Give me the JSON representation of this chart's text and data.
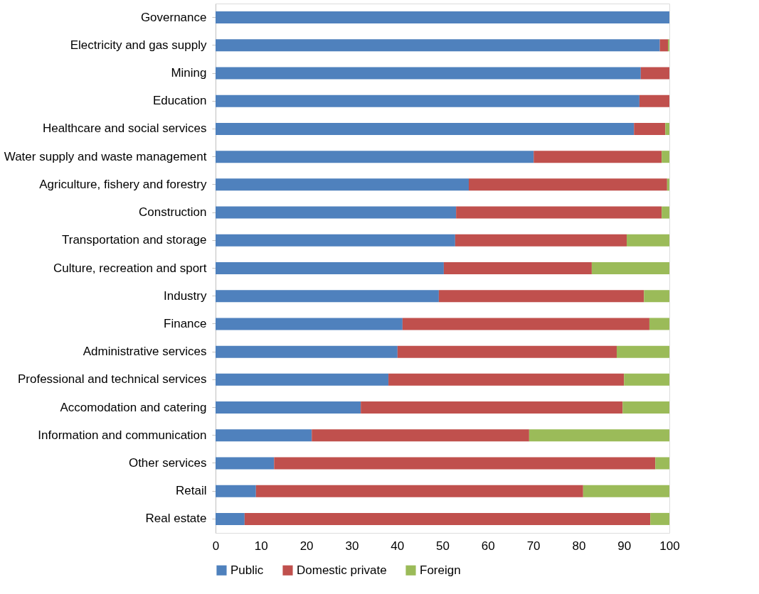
{
  "chart_data": {
    "type": "bar",
    "orientation": "horizontal",
    "stacked": true,
    "legend": "bottom",
    "grid": false,
    "categories": [
      "Governance",
      "Electricity and gas supply",
      "Mining",
      "Education",
      "Healthcare and social services",
      "Water supply and waste management",
      "Agriculture, fishery and forestry",
      "Construction",
      "Transportation and storage",
      "Culture, recreation and sport",
      "Industry",
      "Finance",
      "Administrative services",
      "Professional and technical services",
      "Accomodation and catering",
      "Information and communication",
      "Other services",
      "Retail",
      "Real estate"
    ],
    "series": [
      {
        "name": "Public",
        "color": "#4f81bd",
        "values": [
          100,
          97.9,
          93.7,
          93.4,
          92.2,
          70.1,
          55.8,
          53.0,
          52.8,
          50.3,
          49.2,
          41.2,
          40.1,
          38.1,
          32.0,
          21.2,
          12.9,
          8.9,
          6.4
        ]
      },
      {
        "name": "Domestic private",
        "color": "#c0504d",
        "values": [
          0,
          1.8,
          6.3,
          6.6,
          6.9,
          28.2,
          43.7,
          45.3,
          37.8,
          32.6,
          45.2,
          54.4,
          48.3,
          51.9,
          57.7,
          47.9,
          84.0,
          72.1,
          89.4
        ]
      },
      {
        "name": "Foreign",
        "color": "#9bbb59",
        "values": [
          0,
          0.3,
          0,
          0,
          0.9,
          1.7,
          0.5,
          1.7,
          9.4,
          17.1,
          5.6,
          4.4,
          11.6,
          10.0,
          10.3,
          30.9,
          3.1,
          19.0,
          4.2
        ]
      }
    ],
    "xlim": [
      0,
      100
    ],
    "xticks": [
      0,
      10,
      20,
      30,
      40,
      50,
      60,
      70,
      80,
      90,
      100
    ]
  }
}
